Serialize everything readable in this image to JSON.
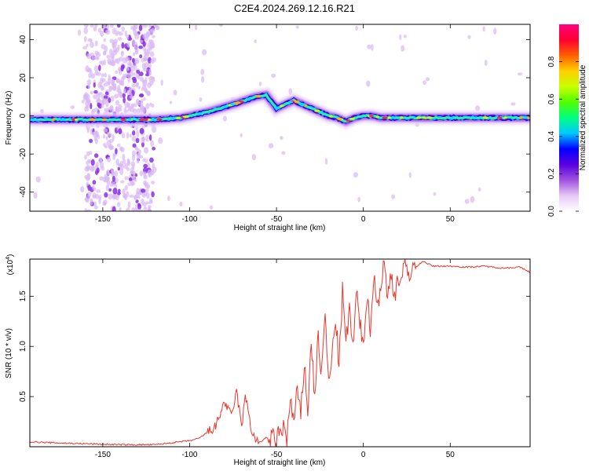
{
  "title": "C2E4.2024.269.12.16.R21",
  "chart_data": [
    {
      "type": "heatmap",
      "xlabel": "Height of straight line (km)",
      "ylabel": "Frequency (Hz)",
      "xlim": [
        -192,
        96
      ],
      "ylim": [
        -50,
        48
      ],
      "xticks": [
        -150,
        -100,
        -50,
        0,
        50
      ],
      "yticks": [
        -40,
        -20,
        0,
        20,
        40
      ],
      "colorbar": {
        "label": "Normalized spectral amplitude",
        "range": [
          0,
          1
        ],
        "ticks": [
          "0.0",
          "0.2",
          "0.4",
          "0.6",
          "0.8"
        ],
        "colors": [
          "#ffffff",
          "#e6c8f5",
          "#a050e0",
          "#5a00e0",
          "#0000ff",
          "#00c8ff",
          "#00ff80",
          "#50ff00",
          "#c8ff00",
          "#ffd000",
          "#ff6000",
          "#ff0030",
          "#ff0080"
        ]
      },
      "ridge": {
        "x": [
          -192,
          -150,
          -120,
          -105,
          -90,
          -75,
          -62,
          -56,
          -50,
          -45,
          -40,
          -35,
          -30,
          -25,
          -20,
          -15,
          -10,
          -5,
          0,
          5,
          10,
          20,
          40,
          60,
          96
        ],
        "freq": [
          -2,
          -2,
          -2,
          -1,
          2,
          6,
          10,
          11,
          4,
          6,
          8,
          6,
          4,
          2,
          0,
          -1,
          -3,
          -1,
          0,
          0,
          -1,
          -1,
          -1,
          -1,
          -1
        ]
      },
      "noise_band_x": [
        -160,
        -120
      ]
    },
    {
      "type": "line",
      "xlabel": "Height of straight line (km)",
      "ylabel": "SNR (10 * v/v)",
      "axis_multiplier": "(x10",
      "axis_multiplier_exponent": "4",
      "xlim": [
        -192,
        96
      ],
      "ylim": [
        0,
        1.87
      ],
      "xticks": [
        -150,
        -100,
        -50,
        0,
        50
      ],
      "yticks": [
        0.5,
        1.0,
        1.5
      ],
      "ytick_labels": [
        "0.5",
        "1.0",
        "1.5"
      ],
      "series": [
        {
          "color": "#e8382e",
          "x": [
            -192,
            -180,
            -160,
            -140,
            -120,
            -110,
            -100,
            -95,
            -90,
            -85,
            -80,
            -76,
            -73,
            -70,
            -68,
            -66,
            -64,
            -62,
            -60,
            -58,
            -56,
            -54,
            -52,
            -50,
            -48,
            -46,
            -44,
            -42,
            -40,
            -38,
            -36,
            -34,
            -32,
            -30,
            -28,
            -26,
            -24,
            -22,
            -20,
            -18,
            -16,
            -14,
            -12,
            -10,
            -8,
            -6,
            -4,
            -2,
            0,
            2,
            4,
            6,
            8,
            10,
            12,
            14,
            16,
            18,
            20,
            22,
            24,
            26,
            28,
            30,
            34,
            40,
            50,
            60,
            70,
            80,
            90,
            96
          ],
          "y": [
            0.05,
            0.04,
            0.03,
            0.02,
            0.02,
            0.04,
            0.06,
            0.08,
            0.14,
            0.2,
            0.45,
            0.3,
            0.55,
            0.2,
            0.5,
            0.35,
            0.12,
            0.08,
            0.04,
            0.06,
            0.1,
            0.05,
            0.08,
            0.06,
            0.15,
            0.2,
            0.1,
            0.45,
            0.25,
            0.55,
            0.3,
            0.85,
            0.35,
            1.05,
            0.5,
            1.1,
            0.7,
            1.35,
            0.6,
            0.9,
            1.3,
            0.8,
            1.55,
            1.0,
            1.4,
            0.95,
            1.55,
            1.2,
            1.05,
            1.5,
            1.2,
            1.7,
            1.4,
            1.6,
            1.85,
            1.45,
            1.75,
            1.5,
            1.7,
            1.65,
            1.8,
            1.72,
            1.8,
            1.78,
            1.85,
            1.8,
            1.8,
            1.79,
            1.8,
            1.78,
            1.79,
            1.74
          ]
        }
      ]
    }
  ]
}
